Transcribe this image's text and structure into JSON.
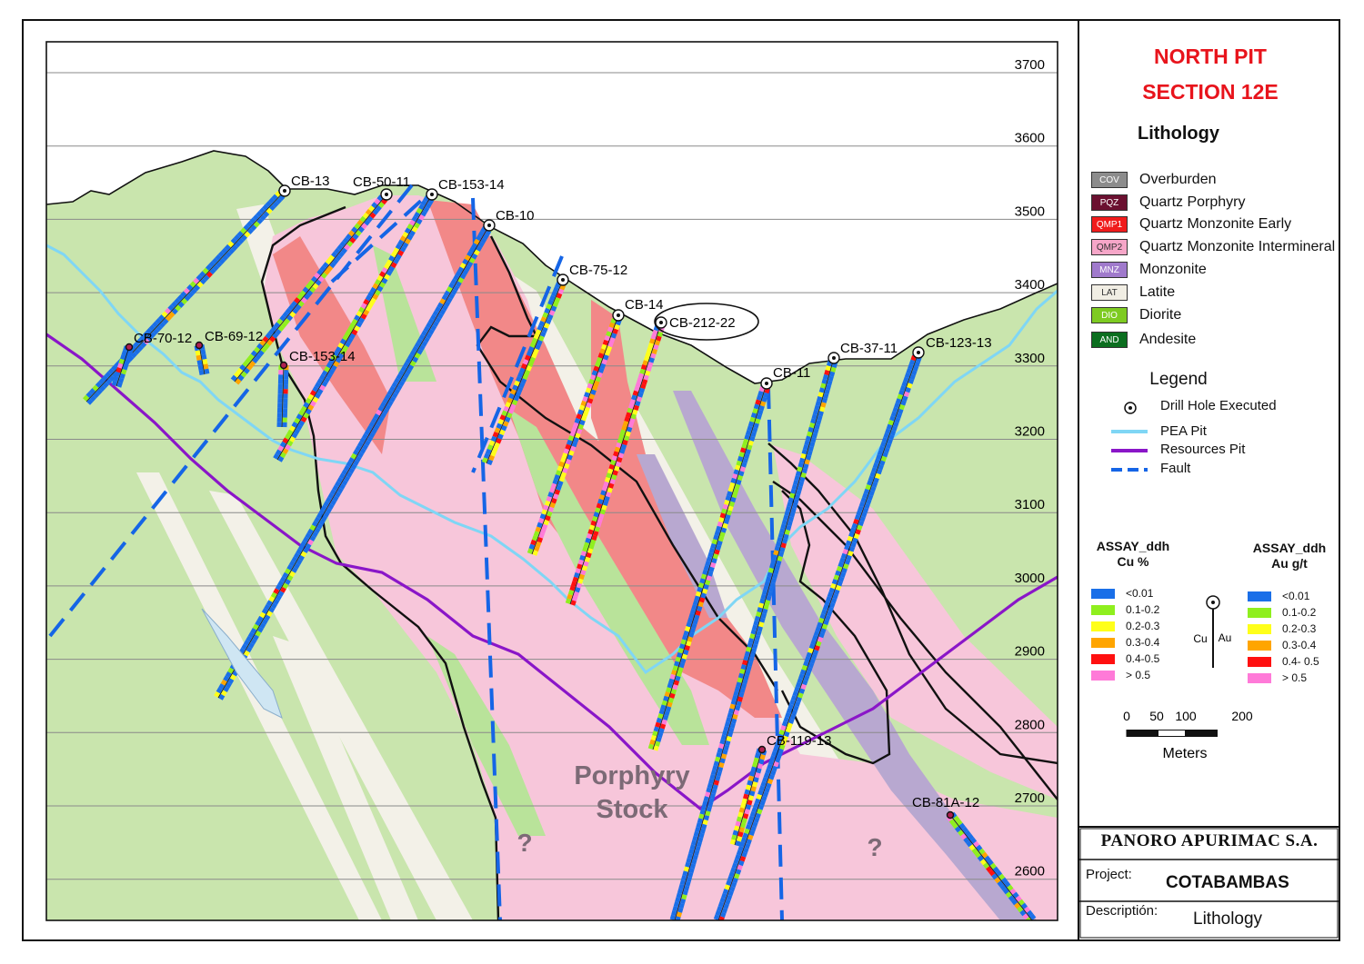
{
  "header": {
    "title_line1": "NORTH PIT",
    "title_line2": "SECTION 12E",
    "lithology_heading": "Lithology",
    "legend_heading": "Legend"
  },
  "lithology": [
    {
      "code": "COV",
      "label": "Overburden",
      "color": "#8c8c8c",
      "text_color": "#ffffff"
    },
    {
      "code": "PQZ",
      "label": "Quartz Porphyry",
      "color": "#6b1030",
      "text_color": "#ffffff"
    },
    {
      "code": "QMP1",
      "label": "Quartz Monzonite Early",
      "color": "#f01c1c",
      "text_color": "#ffffff"
    },
    {
      "code": "QMP2",
      "label": "Quartz Monzonite Intermineral",
      "color": "#f6a6c8",
      "text_color": "#333333"
    },
    {
      "code": "MNZ",
      "label": "Monzonite",
      "color": "#a07acc",
      "text_color": "#ffffff"
    },
    {
      "code": "LAT",
      "label": "Latite",
      "color": "#f1eee4",
      "text_color": "#333333"
    },
    {
      "code": "DIO",
      "label": "Diorite",
      "color": "#7ecb22",
      "text_color": "#ffffff"
    },
    {
      "code": "AND",
      "label": "Andesite",
      "color": "#0b6e1f",
      "text_color": "#ffffff"
    }
  ],
  "legend": [
    {
      "symbol": "drill-hole",
      "label": "Drill Hole Executed"
    },
    {
      "symbol": "pea-pit",
      "label": "PEA Pit",
      "color": "#7fd6f5"
    },
    {
      "symbol": "resources-pit",
      "label": "Resources Pit",
      "color": "#8a16c8"
    },
    {
      "symbol": "fault",
      "label": "Fault",
      "color": "#1565e6"
    }
  ],
  "assay_cu": {
    "title_line1": "ASSAY_ddh",
    "title_line2": "Cu %",
    "ranges": [
      {
        "label": "<0.01",
        "color": "#1a6fe8"
      },
      {
        "label": "0.1-0.2",
        "color": "#8fef1e"
      },
      {
        "label": "0.2-0.3",
        "color": "#ffff1a"
      },
      {
        "label": "0.3-0.4",
        "color": "#ffa500"
      },
      {
        "label": "0.4-0.5",
        "color": "#ff1010"
      },
      {
        "label": "> 0.5",
        "color": "#ff7ad8"
      }
    ]
  },
  "assay_au": {
    "title_line1": "ASSAY_ddh",
    "title_line2": "Au g/t",
    "ranges": [
      {
        "label": "<0.01",
        "color": "#1a6fe8"
      },
      {
        "label": "0.1-0.2",
        "color": "#8fef1e"
      },
      {
        "label": "0.2-0.3",
        "color": "#ffff1a"
      },
      {
        "label": "0.3-0.4",
        "color": "#ffa500"
      },
      {
        "label": "0.4- 0.5",
        "color": "#ff1010"
      },
      {
        "label": "> 0.5",
        "color": "#ff7ad8"
      }
    ]
  },
  "hole_symbol": {
    "left_label": "Cu",
    "right_label": "Au"
  },
  "scale_bar": {
    "ticks": [
      "0",
      "50",
      "100",
      "200"
    ],
    "unit": "Meters"
  },
  "company": {
    "name": "PANORO APURIMAC S.A.",
    "project_label": "Project:",
    "project_value": "COTABAMBAS",
    "description_label": "Descriptión:",
    "description_value": "Lithology"
  },
  "section": {
    "elevations": [
      "3700",
      "3600",
      "3500",
      "3400",
      "3300",
      "3200",
      "3100",
      "3000",
      "2900",
      "2800",
      "2700",
      "2600"
    ],
    "stock_label_line1": "Porphyry",
    "stock_label_line2": "Stock",
    "unknown_marks": [
      "?",
      "?"
    ],
    "drill_holes": [
      {
        "id": "CB-13"
      },
      {
        "id": "CB-50-11"
      },
      {
        "id": "CB-153-14"
      },
      {
        "id": "CB-10"
      },
      {
        "id": "CB-75-12"
      },
      {
        "id": "CB-14"
      },
      {
        "id": "CB-212-22"
      },
      {
        "id": "CB-11"
      },
      {
        "id": "CB-37-11"
      },
      {
        "id": "CB-123-13"
      },
      {
        "id": "CB-70-12"
      },
      {
        "id": "CB-69-12"
      },
      {
        "id": "CB-153-14"
      },
      {
        "id": "CB-119-13"
      },
      {
        "id": "CB-81A-12"
      }
    ]
  }
}
